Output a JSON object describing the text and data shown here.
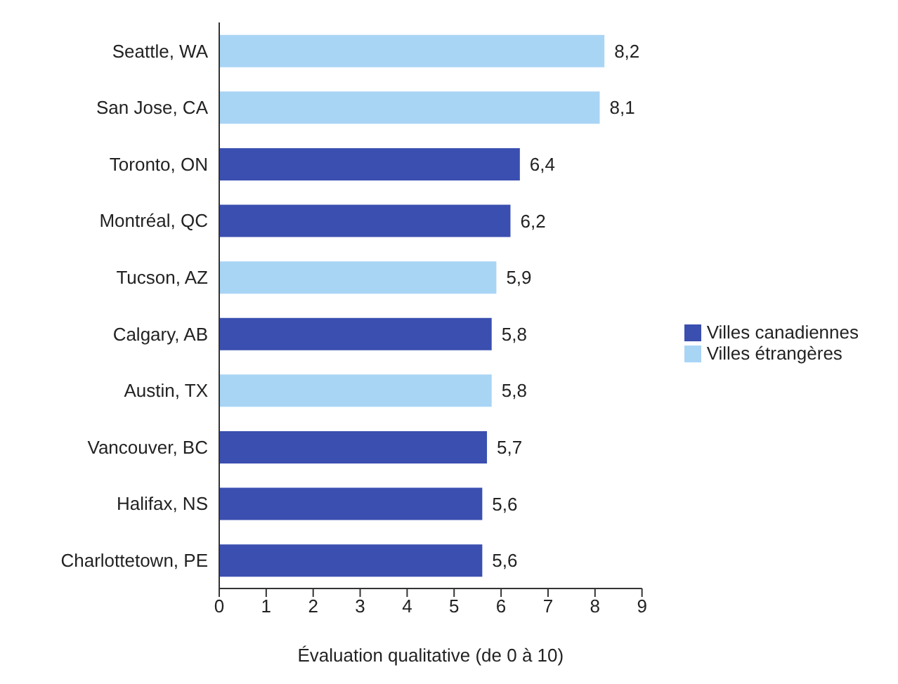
{
  "chart_data": {
    "type": "bar",
    "orientation": "horizontal",
    "stacked": true,
    "categories": [
      "Seattle, WA",
      "San Jose, CA",
      "Toronto, ON",
      "Montréal, QC",
      "Tucson, AZ",
      "Calgary, AB",
      "Austin, TX",
      "Vancouver, BC",
      "Halifax, NS",
      "Charlottetown, PE"
    ],
    "series": [
      {
        "name": "Villes canadiennes",
        "color": "#3b4fb0",
        "values": [
          null,
          null,
          6.4,
          6.2,
          null,
          5.8,
          null,
          5.7,
          5.6,
          5.6
        ],
        "value_labels": [
          null,
          null,
          "6,4",
          "6,2",
          null,
          "5,8",
          null,
          "5,7",
          "5,6",
          "5,6"
        ]
      },
      {
        "name": "Villes étrangères",
        "color": "#a9d5f5",
        "values": [
          8.2,
          8.1,
          null,
          null,
          5.9,
          null,
          5.8,
          null,
          null,
          null
        ],
        "value_labels": [
          "8,2",
          "8,1",
          null,
          null,
          "5,9",
          null,
          "5,8",
          null,
          null,
          null
        ]
      }
    ],
    "xlabel": "Évaluation qualitative (de 0 à 10)",
    "xlim": [
      0,
      9
    ],
    "xticks": [
      0,
      1,
      2,
      3,
      4,
      5,
      6,
      7,
      8,
      9
    ],
    "grid": false,
    "legend": "right"
  }
}
